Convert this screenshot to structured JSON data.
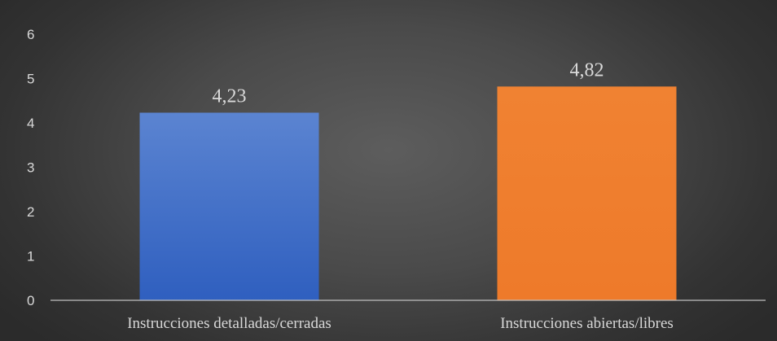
{
  "chart_data": {
    "type": "bar",
    "title": "",
    "xlabel": "",
    "ylabel": "",
    "categories": [
      "Instrucciones detalladas/cerradas",
      "Instrucciones abiertas/libres"
    ],
    "values": [
      4.23,
      4.82
    ],
    "data_labels": [
      "4,23",
      "4,82"
    ],
    "ylim": [
      0,
      6
    ],
    "yticks": [
      0,
      1,
      2,
      3,
      4,
      5,
      6
    ],
    "grid": false,
    "legend": "none",
    "colors": [
      "#4472C4",
      "#ED7D31"
    ],
    "background": "#4a4a4a",
    "text_color": "#d9d9d9"
  }
}
